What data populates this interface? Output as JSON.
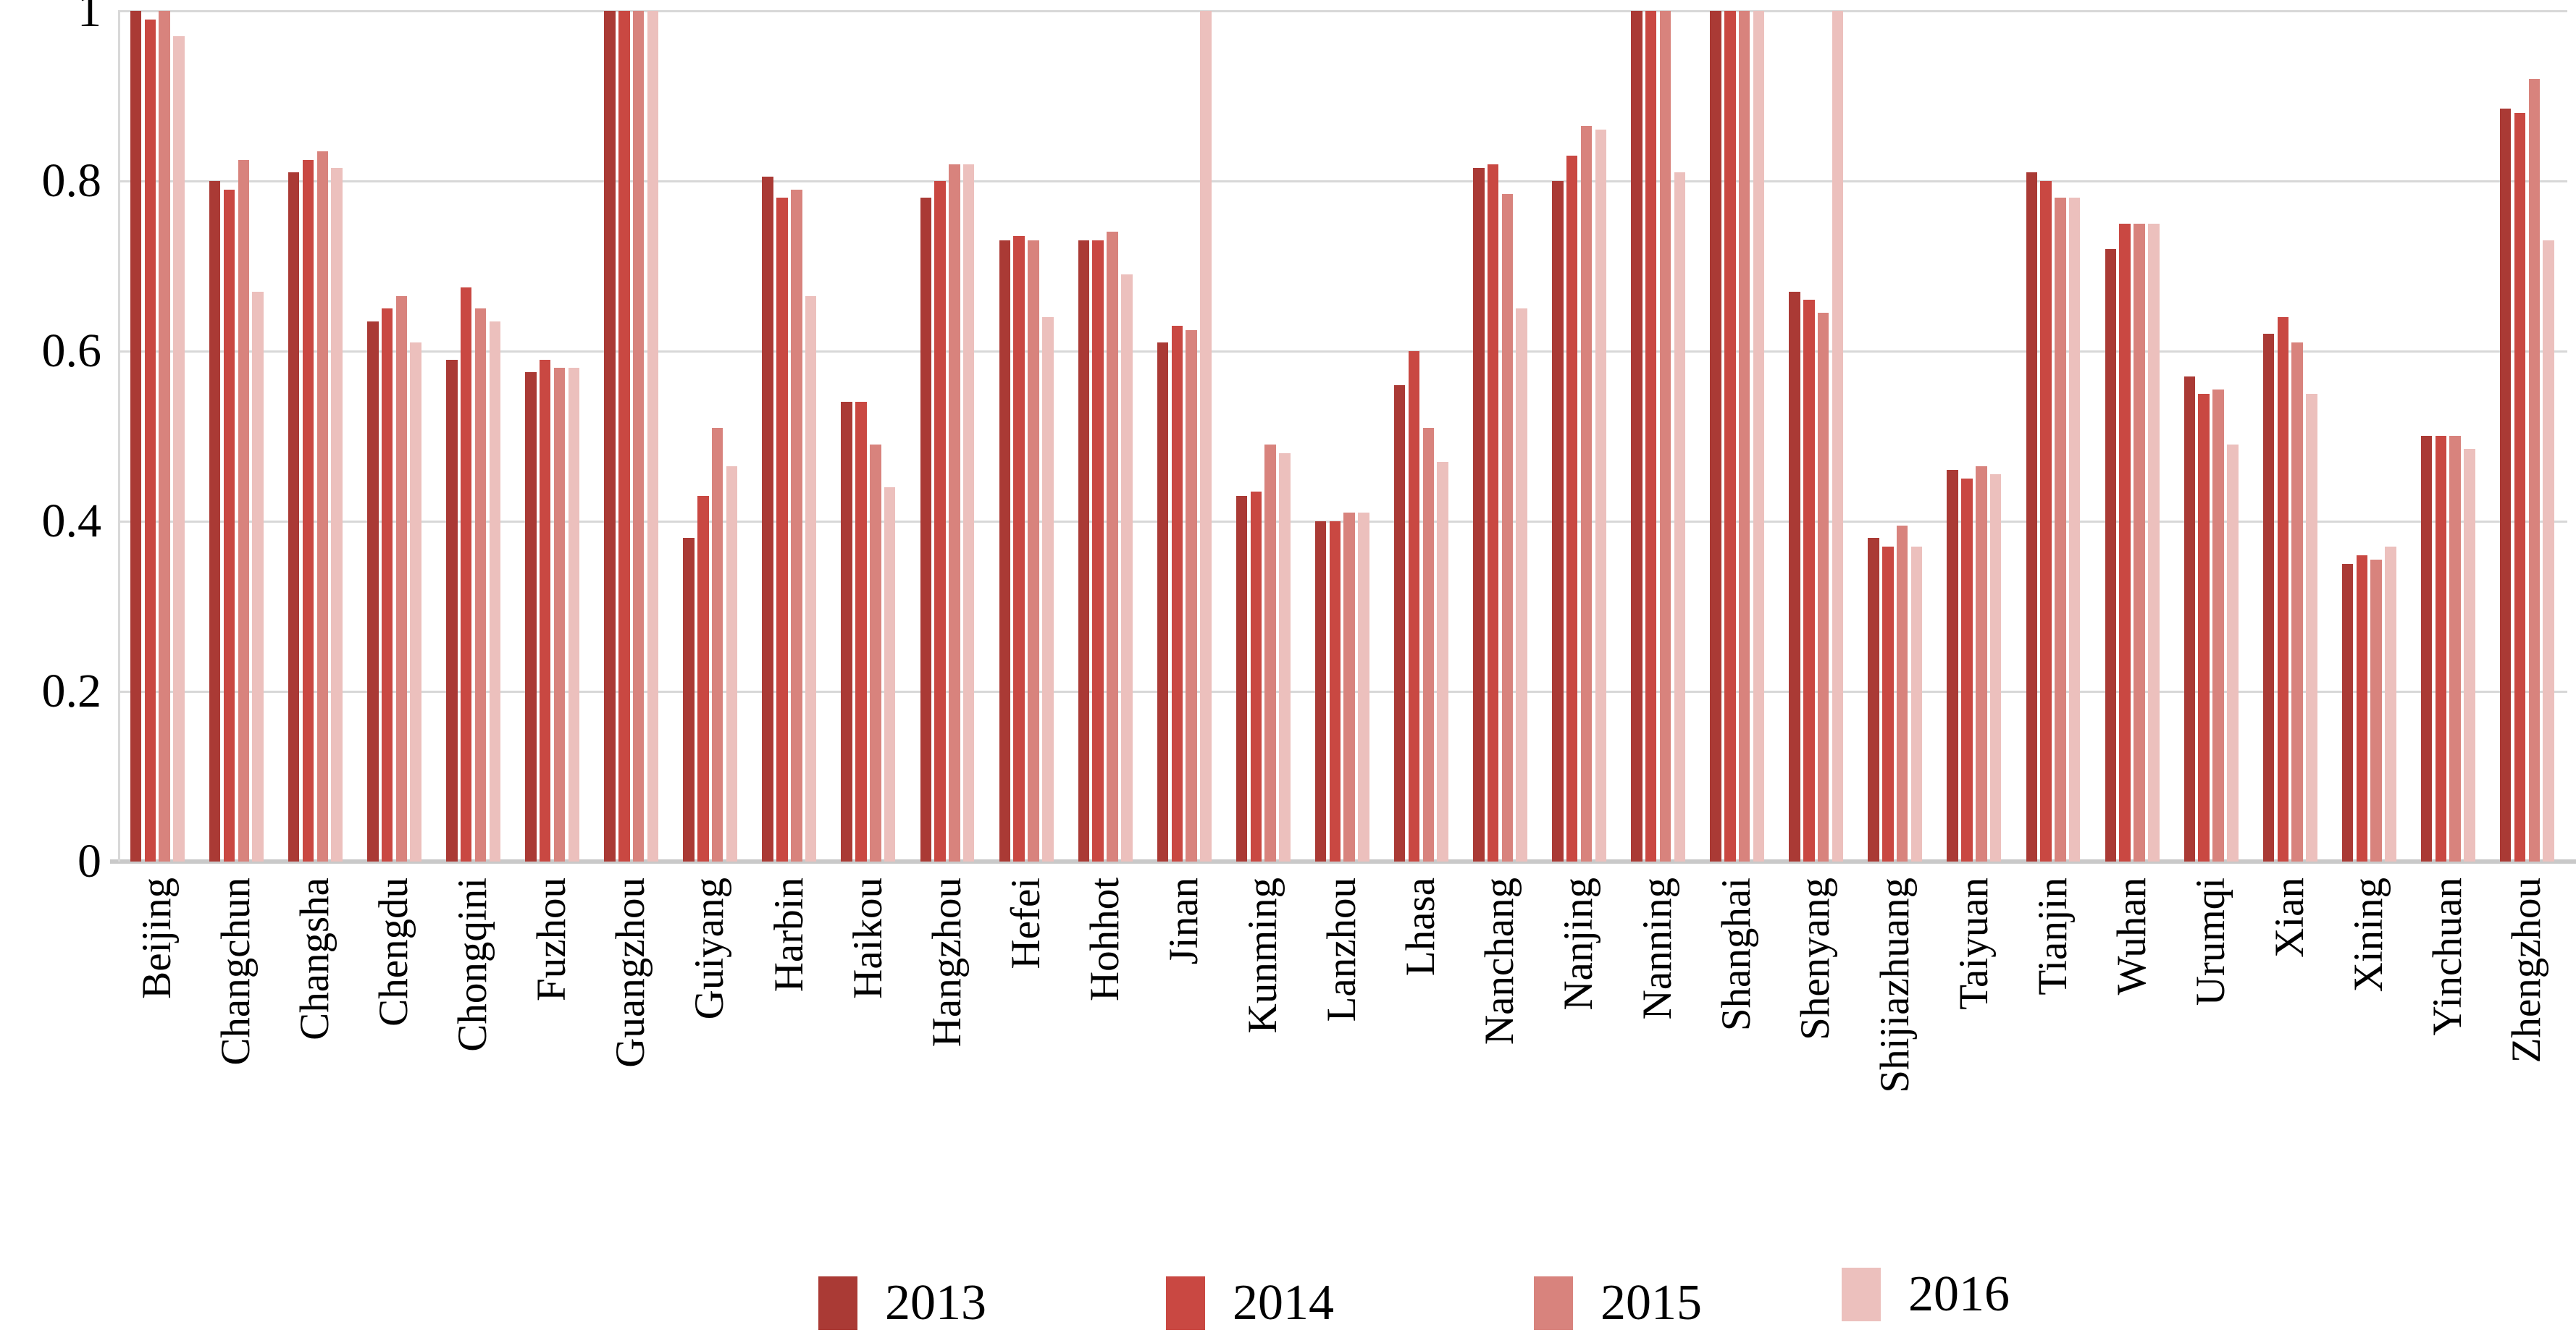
{
  "chart_data": {
    "type": "bar",
    "title": "",
    "xlabel": "",
    "ylabel": "",
    "ylim": [
      0,
      1
    ],
    "grid": true,
    "legend_position": "bottom",
    "ytick_values": [
      0,
      0.2,
      0.4,
      0.6,
      0.8,
      1
    ],
    "ytick_labels": [
      "0",
      "0.2",
      "0.4",
      "0.6",
      "0.8",
      "1"
    ],
    "categories": [
      "Beijing",
      "Changchun",
      "Changsha",
      "Chengdu",
      "Chongqini",
      "Fuzhou",
      "Guangzhou",
      "Guiyang",
      "Harbin",
      "Haikou",
      "Hangzhou",
      "Hefei",
      "Hohhot",
      "Jinan",
      "Kunming",
      "Lanzhou",
      "Lhasa",
      "Nanchang",
      "Nanjing",
      "Nanning",
      "Shanghai",
      "Shenyang",
      "Shijiazhuang",
      "Taiyuan",
      "Tianjin",
      "Wuhan",
      "Urumqi",
      "Xian",
      "Xining",
      "Yinchuan",
      "Zhengzhou"
    ],
    "series": [
      {
        "name": "2013",
        "color": "#AA3A35",
        "values": [
          1.0,
          0.8,
          0.81,
          0.635,
          0.59,
          0.575,
          1.0,
          0.38,
          0.805,
          0.54,
          0.78,
          0.73,
          0.73,
          0.61,
          0.43,
          0.4,
          0.56,
          0.815,
          0.8,
          1.0,
          1.0,
          0.67,
          0.38,
          0.46,
          0.81,
          0.72,
          0.57,
          0.62,
          0.35,
          0.5,
          0.885
        ]
      },
      {
        "name": "2014",
        "color": "#C94842",
        "values": [
          0.99,
          0.79,
          0.825,
          0.65,
          0.675,
          0.59,
          1.0,
          0.43,
          0.78,
          0.54,
          0.8,
          0.735,
          0.73,
          0.63,
          0.435,
          0.4,
          0.6,
          0.82,
          0.83,
          1.0,
          1.0,
          0.66,
          0.37,
          0.45,
          0.8,
          0.75,
          0.55,
          0.64,
          0.36,
          0.5,
          0.88
        ]
      },
      {
        "name": "2015",
        "color": "#D8837D",
        "values": [
          1.0,
          0.825,
          0.835,
          0.665,
          0.65,
          0.58,
          1.0,
          0.51,
          0.79,
          0.49,
          0.82,
          0.73,
          0.74,
          0.625,
          0.49,
          0.41,
          0.51,
          0.785,
          0.865,
          1.0,
          1.0,
          0.645,
          0.395,
          0.465,
          0.78,
          0.75,
          0.555,
          0.61,
          0.355,
          0.5,
          0.92
        ]
      },
      {
        "name": "2016",
        "color": "#ECC0BD",
        "values": [
          0.97,
          0.67,
          0.815,
          0.61,
          0.635,
          0.58,
          1.0,
          0.465,
          0.665,
          0.44,
          0.82,
          0.64,
          0.69,
          1.0,
          0.48,
          0.41,
          0.47,
          0.65,
          0.86,
          0.81,
          1.0,
          1.0,
          0.37,
          0.455,
          0.78,
          0.75,
          0.49,
          0.55,
          0.37,
          0.485,
          0.73
        ]
      }
    ],
    "legend_entries": [
      "2013",
      "2014",
      "2015",
      "2016"
    ]
  },
  "style_colors": {
    "gridline": "#d8d8d8",
    "baseline": "#c9c9c9",
    "background": "#ffffff",
    "text": "#000000"
  }
}
